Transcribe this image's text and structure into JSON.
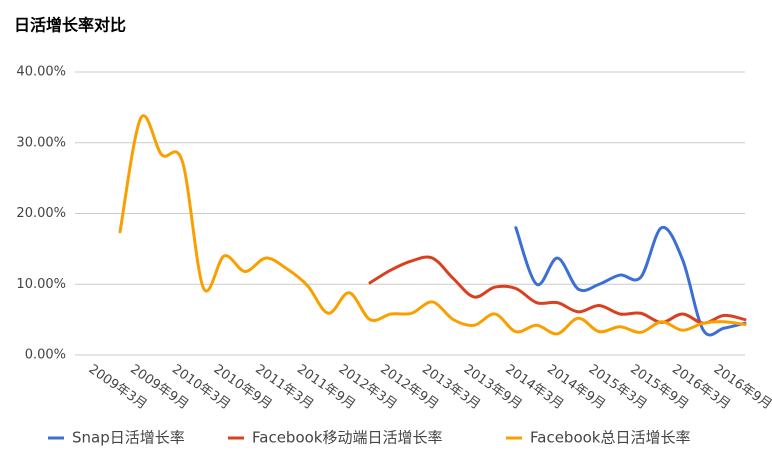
{
  "chart_data": {
    "type": "line",
    "title": "日活增长率对比",
    "categories": [
      "2009年3月",
      null,
      "2009年9月",
      null,
      "2010年3月",
      null,
      "2010年9月",
      null,
      "2011年3月",
      null,
      "2011年9月",
      null,
      "2012年3月",
      null,
      "2012年9月",
      null,
      "2013年3月",
      null,
      "2013年9月",
      null,
      "2014年3月",
      null,
      "2014年9月",
      null,
      "2015年3月",
      null,
      "2015年9月",
      null,
      "2016年3月",
      null,
      "2016年9月"
    ],
    "series": [
      {
        "name": "Snap日活增长率",
        "color": "#3b6fd6",
        "values": [
          null,
          null,
          null,
          null,
          null,
          null,
          null,
          null,
          null,
          null,
          null,
          null,
          null,
          null,
          null,
          null,
          null,
          null,
          null,
          18.0,
          10.0,
          13.7,
          9.3,
          10.0,
          11.3,
          11.0,
          18.0,
          13.5,
          3.5,
          3.8,
          4.5
        ]
      },
      {
        "name": "Facebook移动端日活增长率",
        "color": "#d9401f",
        "values": [
          null,
          null,
          null,
          null,
          null,
          null,
          null,
          null,
          null,
          null,
          null,
          null,
          10.2,
          12.0,
          13.3,
          13.7,
          10.8,
          8.2,
          9.6,
          9.4,
          7.4,
          7.4,
          6.1,
          7.0,
          5.8,
          5.9,
          4.6,
          5.8,
          4.5,
          5.6,
          5.0
        ]
      },
      {
        "name": "Facebook总日活增长率",
        "color": "#f9a000",
        "values": [
          17.4,
          33.5,
          28.3,
          27.3,
          9.5,
          14.0,
          11.8,
          13.7,
          12.2,
          9.8,
          5.9,
          8.8,
          5.0,
          5.8,
          5.9,
          7.5,
          5.0,
          4.2,
          5.8,
          3.3,
          4.2,
          3.0,
          5.2,
          3.3,
          4.0,
          3.2,
          4.7,
          3.5,
          4.5,
          4.7,
          4.3
        ]
      }
    ],
    "ylim": [
      0,
      40
    ],
    "yticks": [
      {
        "value": 0,
        "label": "0.00%"
      },
      {
        "value": 10,
        "label": "10.00%"
      },
      {
        "value": 20,
        "label": "20.00%"
      },
      {
        "value": 30,
        "label": "30.00%"
      },
      {
        "value": 40,
        "label": "40.00%"
      }
    ],
    "grid": true,
    "legend": "bottom"
  }
}
